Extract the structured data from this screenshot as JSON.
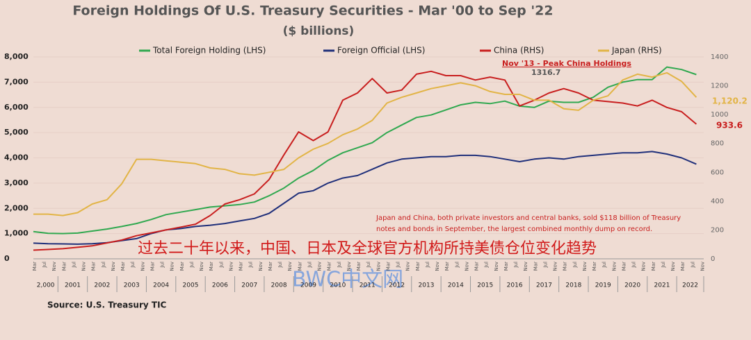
{
  "chart_data": {
    "type": "line",
    "title": "Foreign Holdings Of U.S. Treasury Securities - Mar '00 to Sep '22",
    "subtitle": "($ billions)",
    "x": [
      "2000-03",
      "2000-09",
      "2001-03",
      "2001-09",
      "2002-03",
      "2002-09",
      "2003-03",
      "2003-09",
      "2004-03",
      "2004-09",
      "2005-03",
      "2005-09",
      "2006-03",
      "2006-09",
      "2007-03",
      "2007-09",
      "2008-03",
      "2008-09",
      "2009-03",
      "2009-09",
      "2010-03",
      "2010-09",
      "2011-03",
      "2011-09",
      "2012-03",
      "2012-09",
      "2013-03",
      "2013-09",
      "2014-03",
      "2014-09",
      "2015-03",
      "2015-09",
      "2016-03",
      "2016-09",
      "2017-03",
      "2017-09",
      "2018-03",
      "2018-09",
      "2019-03",
      "2019-09",
      "2020-03",
      "2020-09",
      "2021-03",
      "2021-09",
      "2022-03",
      "2022-09"
    ],
    "xlim": [
      "2000-03",
      "2022-12"
    ],
    "month_labels": [
      "Mar",
      "Jul",
      "Nov"
    ],
    "year_labels": [
      "2,000",
      "2001",
      "2002",
      "2003",
      "2004",
      "2005",
      "2006",
      "2007",
      "2008",
      "2009",
      "2010",
      "2011",
      "2012",
      "2013",
      "2014",
      "2015",
      "2016",
      "2017",
      "2018",
      "2019",
      "2020",
      "2021",
      "2022"
    ],
    "ylim": [
      0,
      8000
    ],
    "yticks": [
      0,
      {
        "value": 1000,
        "label": "1,000"
      },
      {
        "value": 2000,
        "label": "2,000"
      },
      {
        "value": 3000,
        "label": "3,000"
      },
      {
        "value": 4000,
        "label": "4,000"
      },
      {
        "value": 5000,
        "label": "5,000"
      },
      {
        "value": 6000,
        "label": "6,000"
      },
      {
        "value": 7000,
        "label": "7,000"
      },
      {
        "value": 8000,
        "label": "8,000"
      }
    ],
    "y2lim": [
      0,
      1400
    ],
    "y2ticks": [
      0,
      200,
      400,
      600,
      800,
      1000,
      1200,
      1400
    ],
    "grid": true,
    "series": [
      {
        "name": "Total Foreign Holding (LHS)",
        "color": "#2fa84f",
        "values": [
          1080,
          1010,
          1000,
          1020,
          1100,
          1180,
          1280,
          1400,
          1560,
          1750,
          1850,
          1950,
          2050,
          2100,
          2150,
          2250,
          2500,
          2800,
          3200,
          3500,
          3900,
          4200,
          4400,
          4600,
          5000,
          5300,
          5600,
          5700,
          5900,
          6100,
          6200,
          6150,
          6250,
          6050,
          6000,
          6250,
          6200,
          6200,
          6400,
          6800,
          7000,
          7100,
          7100,
          7600,
          7500,
          7300
        ]
      },
      {
        "name": "Foreign Official (LHS)",
        "color": "#1f2f7a",
        "values": [
          620,
          600,
          590,
          580,
          600,
          640,
          720,
          800,
          1000,
          1150,
          1200,
          1280,
          1330,
          1400,
          1500,
          1600,
          1800,
          2200,
          2600,
          2700,
          3000,
          3200,
          3300,
          3550,
          3800,
          3950,
          4000,
          4050,
          4050,
          4100,
          4100,
          4050,
          3950,
          3850,
          3950,
          4000,
          3950,
          4050,
          4100,
          4150,
          4200,
          4200,
          4250,
          4150,
          4000,
          3750
        ]
      },
      {
        "name": "China (RHS)",
        "color": "#c81e1e",
        "axis": "y2",
        "values": [
          60,
          65,
          70,
          80,
          90,
          110,
          130,
          160,
          180,
          200,
          220,
          240,
          300,
          380,
          410,
          450,
          550,
          720,
          880,
          820,
          880,
          1100,
          1150,
          1250,
          1150,
          1170,
          1280,
          1300,
          1270,
          1270,
          1240,
          1260,
          1240,
          1060,
          1100,
          1150,
          1180,
          1150,
          1100,
          1090,
          1080,
          1060,
          1100,
          1050,
          1020,
          933.6
        ]
      },
      {
        "name": "Japan (RHS)",
        "color": "#e2b445",
        "axis": "y2",
        "values": [
          310,
          310,
          300,
          320,
          380,
          410,
          520,
          690,
          690,
          680,
          670,
          660,
          630,
          620,
          590,
          580,
          600,
          620,
          700,
          760,
          800,
          860,
          900,
          960,
          1080,
          1120,
          1150,
          1180,
          1200,
          1220,
          1200,
          1160,
          1140,
          1140,
          1100,
          1100,
          1040,
          1030,
          1100,
          1130,
          1240,
          1280,
          1260,
          1290,
          1230,
          1120.2
        ]
      }
    ],
    "annotations": {
      "peak_label": "Nov '13 - Peak China Holdings",
      "peak_value": "1316.7",
      "japan_end": "1,120.2",
      "china_end": "933.6",
      "note": [
        "Japan and China, both private investors and central banks, sold $118  billion of Treasury",
        "notes and bonds in September, the largest combined monthly dump on record."
      ],
      "overlay": "过去二十年以来，中国、日本及全球官方机构所持美债仓位变化趋势",
      "watermark": "BWC中文网"
    },
    "source": "Source:  U.S. Treasury TIC"
  }
}
